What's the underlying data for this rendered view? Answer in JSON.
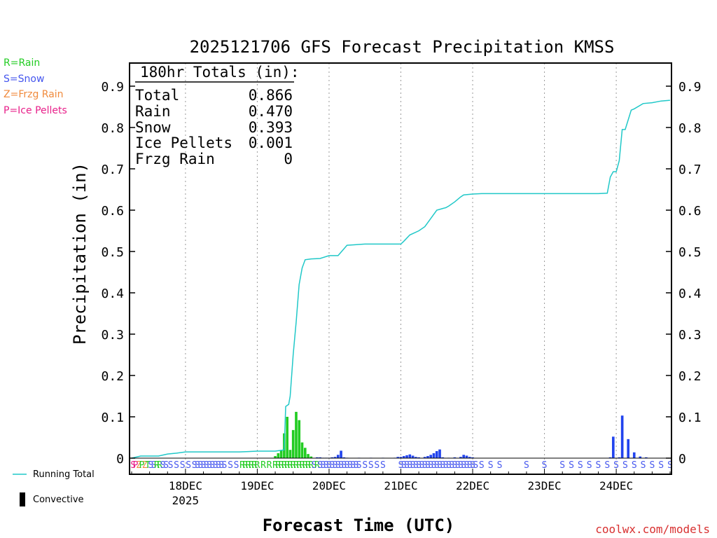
{
  "chart_data": {
    "type": "bar",
    "title": "2025121706 GFS Forecast Precipitation KMSS",
    "xlabel": "Forecast Time (UTC)",
    "ylabel": "Precipitation (in)",
    "ylim": [
      0,
      0.95
    ],
    "xlim_hours": [
      0,
      180
    ],
    "y_ticks": [
      0,
      0.1,
      0.2,
      0.3,
      0.4,
      0.5,
      0.6,
      0.7,
      0.8,
      0.9
    ],
    "y_tick_labels": [
      "0",
      "0.1",
      "0.2",
      "0.3",
      "0.4",
      "0.5",
      "0.6",
      "0.7",
      "0.8",
      "0.9"
    ],
    "x_day_ticks": [
      {
        "hour": 18,
        "label": "18DEC",
        "sublabel": "2025"
      },
      {
        "hour": 42,
        "label": "19DEC",
        "sublabel": ""
      },
      {
        "hour": 66,
        "label": "20DEC",
        "sublabel": ""
      },
      {
        "hour": 90,
        "label": "21DEC",
        "sublabel": ""
      },
      {
        "hour": 114,
        "label": "22DEC",
        "sublabel": ""
      },
      {
        "hour": 138,
        "label": "23DEC",
        "sublabel": ""
      },
      {
        "hour": 162,
        "label": "24DEC",
        "sublabel": ""
      }
    ],
    "precip_type_legend": [
      {
        "label": "R=Rain",
        "color": "#22cc22"
      },
      {
        "label": "S=Snow",
        "color": "#4455ee"
      },
      {
        "label": "Z=Frzg Rain",
        "color": "#f08a3c"
      },
      {
        "label": "P=Ice Pellets",
        "color": "#e8208a"
      }
    ],
    "totals_box": {
      "header": "180hr Totals (in):",
      "rows": [
        {
          "label": "Total",
          "value": "0.866"
        },
        {
          "label": "Rain",
          "value": "0.470"
        },
        {
          "label": "Snow",
          "value": "0.393"
        },
        {
          "label": "Ice Pellets",
          "value": "0.001"
        },
        {
          "label": "Frzg Rain",
          "value": "0"
        }
      ]
    },
    "series_line": {
      "name": "Running Total",
      "color": "#20c8c8",
      "hours": [
        0,
        3,
        9,
        12,
        15,
        18,
        24,
        30,
        36,
        39,
        42,
        48,
        51,
        51.5,
        52.5,
        53,
        54,
        55,
        56,
        57,
        58,
        60,
        63,
        66,
        67,
        69,
        72,
        78,
        84,
        90,
        91,
        93,
        96,
        98,
        99,
        102,
        104,
        105,
        106,
        108,
        110,
        111,
        114,
        117,
        120,
        126,
        132,
        138,
        144,
        150,
        156,
        159,
        160,
        161,
        162,
        163,
        164,
        165,
        167,
        168,
        171,
        174,
        177,
        180
      ],
      "values": [
        0,
        0.005,
        0.005,
        0.01,
        0.012,
        0.015,
        0.015,
        0.015,
        0.015,
        0.016,
        0.017,
        0.017,
        0.02,
        0.125,
        0.13,
        0.15,
        0.25,
        0.33,
        0.42,
        0.46,
        0.48,
        0.482,
        0.483,
        0.49,
        0.49,
        0.49,
        0.515,
        0.518,
        0.518,
        0.518,
        0.525,
        0.54,
        0.55,
        0.56,
        0.57,
        0.6,
        0.604,
        0.606,
        0.61,
        0.62,
        0.632,
        0.637,
        0.639,
        0.64,
        0.64,
        0.64,
        0.64,
        0.64,
        0.64,
        0.64,
        0.64,
        0.641,
        0.68,
        0.693,
        0.693,
        0.72,
        0.795,
        0.795,
        0.842,
        0.845,
        0.858,
        0.86,
        0.864,
        0.866
      ]
    },
    "series_bars": [
      {
        "type": "rain",
        "hours": [
          48,
          49,
          50,
          51,
          52
        ],
        "values": [
          0.005,
          0.012,
          0.018,
          0.06,
          0.1
        ]
      },
      {
        "type": "rain",
        "hours": [
          53,
          54,
          55,
          56,
          57,
          58
        ],
        "values": [
          0.02,
          0.068,
          0.112,
          0.092,
          0.038,
          0.025
        ]
      },
      {
        "type": "rain",
        "hours": [
          59,
          60
        ],
        "values": [
          0.01,
          0.004
        ]
      },
      {
        "type": "snow",
        "hours": [
          62,
          63,
          64,
          65,
          66,
          67,
          68,
          69,
          70
        ],
        "values": [
          0.002,
          0.002,
          0.001,
          0.001,
          0.001,
          0.002,
          0.003,
          0.008,
          0.018
        ]
      },
      {
        "type": "snow",
        "hours": [
          71,
          72,
          76,
          80,
          84,
          88,
          89
        ],
        "values": [
          0.002,
          0.001,
          0.001,
          0.001,
          0.001,
          0.001,
          0.003
        ]
      },
      {
        "type": "snow",
        "hours": [
          90,
          91,
          92,
          93,
          94,
          95,
          96
        ],
        "values": [
          0.003,
          0.005,
          0.007,
          0.009,
          0.006,
          0.003,
          0.002
        ]
      },
      {
        "type": "snow",
        "hours": [
          98,
          99,
          100,
          101,
          102,
          103
        ],
        "values": [
          0.003,
          0.005,
          0.008,
          0.012,
          0.017,
          0.021
        ]
      },
      {
        "type": "snow",
        "hours": [
          104,
          106,
          108,
          110,
          111,
          112,
          113,
          114
        ],
        "values": [
          0.002,
          0.001,
          0.002,
          0.003,
          0.008,
          0.006,
          0.003,
          0.002
        ]
      },
      {
        "type": "snow",
        "hours": [
          160,
          161,
          163,
          164,
          166,
          168,
          170,
          172
        ],
        "values": [
          0.002,
          0.052,
          0.002,
          0.103,
          0.046,
          0.014,
          0.004,
          0.002
        ]
      }
    ],
    "type_letters": [
      {
        "hour": 0.5,
        "letter": "S",
        "color": "#e8208a"
      },
      {
        "hour": 1.3,
        "letter": "P",
        "color": "#e8208a"
      },
      {
        "hour": 2.4,
        "letter": "Z",
        "color": "#f08a3c"
      },
      {
        "hour": 3.4,
        "letter": "P",
        "color": "#22cc22"
      },
      {
        "hour": 4.4,
        "letter": "Z",
        "color": "#f08a3c"
      },
      {
        "hour": 5.4,
        "letter": "T",
        "color": "#22cc22"
      },
      {
        "hour": 6.4,
        "letter": "S",
        "color": "#4455ee"
      },
      {
        "hour": 7.4,
        "letter": "S",
        "color": "#4455ee"
      },
      {
        "hour": 8.4,
        "letter": "R",
        "color": "#22cc22"
      },
      {
        "hour": 9.4,
        "letter": "R",
        "color": "#22cc22"
      },
      {
        "hour": 10.4,
        "letter": "S",
        "color": "#4455ee"
      },
      {
        "hour": 11.5,
        "letter": "S",
        "color": "#4455ee"
      },
      {
        "hour": 13,
        "letter": "S",
        "color": "#4455ee"
      },
      {
        "hour": 15,
        "letter": "S",
        "color": "#4455ee"
      },
      {
        "hour": 17,
        "letter": "S",
        "color": "#4455ee"
      },
      {
        "hour": 19,
        "letter": "S",
        "color": "#4455ee"
      },
      {
        "hour": 21,
        "letter": "S",
        "color": "#4455ee"
      },
      {
        "hour": 22,
        "letter": "S",
        "color": "#4455ee"
      },
      {
        "hour": 23,
        "letter": "S",
        "color": "#4455ee"
      },
      {
        "hour": 24,
        "letter": "S",
        "color": "#4455ee"
      },
      {
        "hour": 25,
        "letter": "S",
        "color": "#4455ee"
      },
      {
        "hour": 26,
        "letter": "S",
        "color": "#4455ee"
      },
      {
        "hour": 27,
        "letter": "S",
        "color": "#4455ee"
      },
      {
        "hour": 28,
        "letter": "S",
        "color": "#4455ee"
      },
      {
        "hour": 29,
        "letter": "S",
        "color": "#4455ee"
      },
      {
        "hour": 30,
        "letter": "S",
        "color": "#4455ee"
      },
      {
        "hour": 31,
        "letter": "S",
        "color": "#4455ee"
      },
      {
        "hour": 33,
        "letter": "S",
        "color": "#4455ee"
      },
      {
        "hour": 35,
        "letter": "S",
        "color": "#4455ee"
      },
      {
        "hour": 37,
        "letter": "R",
        "color": "#22cc22"
      },
      {
        "hour": 38,
        "letter": "R",
        "color": "#22cc22"
      },
      {
        "hour": 39,
        "letter": "R",
        "color": "#22cc22"
      },
      {
        "hour": 40,
        "letter": "R",
        "color": "#22cc22"
      },
      {
        "hour": 41,
        "letter": "R",
        "color": "#22cc22"
      },
      {
        "hour": 42,
        "letter": "R",
        "color": "#22cc22"
      },
      {
        "hour": 44,
        "letter": "R",
        "color": "#22cc22"
      },
      {
        "hour": 46,
        "letter": "R",
        "color": "#22cc22"
      },
      {
        "hour": 48,
        "letter": "R",
        "color": "#22cc22"
      },
      {
        "hour": 49,
        "letter": "R",
        "color": "#22cc22"
      },
      {
        "hour": 50,
        "letter": "R",
        "color": "#22cc22"
      },
      {
        "hour": 51,
        "letter": "R",
        "color": "#22cc22"
      },
      {
        "hour": 52,
        "letter": "R",
        "color": "#22cc22"
      },
      {
        "hour": 53,
        "letter": "R",
        "color": "#22cc22"
      },
      {
        "hour": 54,
        "letter": "R",
        "color": "#22cc22"
      },
      {
        "hour": 55,
        "letter": "R",
        "color": "#22cc22"
      },
      {
        "hour": 56,
        "letter": "R",
        "color": "#22cc22"
      },
      {
        "hour": 57,
        "letter": "R",
        "color": "#22cc22"
      },
      {
        "hour": 58,
        "letter": "R",
        "color": "#22cc22"
      },
      {
        "hour": 59,
        "letter": "R",
        "color": "#22cc22"
      },
      {
        "hour": 60,
        "letter": "R",
        "color": "#22cc22"
      },
      {
        "hour": 61,
        "letter": "S",
        "color": "#4455ee"
      },
      {
        "hour": 62,
        "letter": "R",
        "color": "#22cc22"
      },
      {
        "hour": 63,
        "letter": "S",
        "color": "#4455ee"
      },
      {
        "hour": 64,
        "letter": "S",
        "color": "#4455ee"
      },
      {
        "hour": 65,
        "letter": "S",
        "color": "#4455ee"
      },
      {
        "hour": 66,
        "letter": "S",
        "color": "#4455ee"
      },
      {
        "hour": 67,
        "letter": "S",
        "color": "#4455ee"
      },
      {
        "hour": 68,
        "letter": "S",
        "color": "#4455ee"
      },
      {
        "hour": 69,
        "letter": "S",
        "color": "#4455ee"
      },
      {
        "hour": 70,
        "letter": "S",
        "color": "#4455ee"
      },
      {
        "hour": 71,
        "letter": "S",
        "color": "#4455ee"
      },
      {
        "hour": 72,
        "letter": "S",
        "color": "#4455ee"
      },
      {
        "hour": 73,
        "letter": "S",
        "color": "#4455ee"
      },
      {
        "hour": 74,
        "letter": "S",
        "color": "#4455ee"
      },
      {
        "hour": 75,
        "letter": "S",
        "color": "#4455ee"
      },
      {
        "hour": 76,
        "letter": "S",
        "color": "#4455ee"
      },
      {
        "hour": 78,
        "letter": "S",
        "color": "#4455ee"
      },
      {
        "hour": 80,
        "letter": "S",
        "color": "#4455ee"
      },
      {
        "hour": 82,
        "letter": "S",
        "color": "#4455ee"
      },
      {
        "hour": 84,
        "letter": "S",
        "color": "#4455ee"
      },
      {
        "hour": 90,
        "letter": "S",
        "color": "#4455ee"
      },
      {
        "hour": 91,
        "letter": "S",
        "color": "#4455ee"
      },
      {
        "hour": 92,
        "letter": "S",
        "color": "#4455ee"
      },
      {
        "hour": 93,
        "letter": "S",
        "color": "#4455ee"
      },
      {
        "hour": 94,
        "letter": "S",
        "color": "#4455ee"
      },
      {
        "hour": 95,
        "letter": "S",
        "color": "#4455ee"
      },
      {
        "hour": 96,
        "letter": "S",
        "color": "#4455ee"
      },
      {
        "hour": 97,
        "letter": "S",
        "color": "#4455ee"
      },
      {
        "hour": 98,
        "letter": "S",
        "color": "#4455ee"
      },
      {
        "hour": 99,
        "letter": "S",
        "color": "#4455ee"
      },
      {
        "hour": 100,
        "letter": "S",
        "color": "#4455ee"
      },
      {
        "hour": 101,
        "letter": "S",
        "color": "#4455ee"
      },
      {
        "hour": 102,
        "letter": "S",
        "color": "#4455ee"
      },
      {
        "hour": 103,
        "letter": "S",
        "color": "#4455ee"
      },
      {
        "hour": 104,
        "letter": "S",
        "color": "#4455ee"
      },
      {
        "hour": 105,
        "letter": "S",
        "color": "#4455ee"
      },
      {
        "hour": 106,
        "letter": "S",
        "color": "#4455ee"
      },
      {
        "hour": 107,
        "letter": "S",
        "color": "#4455ee"
      },
      {
        "hour": 108,
        "letter": "S",
        "color": "#4455ee"
      },
      {
        "hour": 109,
        "letter": "S",
        "color": "#4455ee"
      },
      {
        "hour": 110,
        "letter": "S",
        "color": "#4455ee"
      },
      {
        "hour": 111,
        "letter": "S",
        "color": "#4455ee"
      },
      {
        "hour": 112,
        "letter": "S",
        "color": "#4455ee"
      },
      {
        "hour": 113,
        "letter": "S",
        "color": "#4455ee"
      },
      {
        "hour": 114,
        "letter": "S",
        "color": "#4455ee"
      },
      {
        "hour": 115,
        "letter": "S",
        "color": "#4455ee"
      },
      {
        "hour": 117,
        "letter": "S",
        "color": "#4455ee"
      },
      {
        "hour": 120,
        "letter": "S",
        "color": "#4455ee"
      },
      {
        "hour": 123,
        "letter": "S",
        "color": "#4455ee"
      },
      {
        "hour": 132,
        "letter": "S",
        "color": "#4455ee"
      },
      {
        "hour": 138,
        "letter": "S",
        "color": "#4455ee"
      },
      {
        "hour": 144,
        "letter": "S",
        "color": "#4455ee"
      },
      {
        "hour": 147,
        "letter": "S",
        "color": "#4455ee"
      },
      {
        "hour": 150,
        "letter": "S",
        "color": "#4455ee"
      },
      {
        "hour": 153,
        "letter": "S",
        "color": "#4455ee"
      },
      {
        "hour": 156,
        "letter": "S",
        "color": "#4455ee"
      },
      {
        "hour": 159,
        "letter": "S",
        "color": "#4455ee"
      },
      {
        "hour": 162,
        "letter": "S",
        "color": "#4455ee"
      },
      {
        "hour": 165,
        "letter": "S",
        "color": "#4455ee"
      },
      {
        "hour": 168,
        "letter": "S",
        "color": "#4455ee"
      },
      {
        "hour": 171,
        "letter": "S",
        "color": "#4455ee"
      },
      {
        "hour": 174,
        "letter": "S",
        "color": "#4455ee"
      },
      {
        "hour": 177,
        "letter": "S",
        "color": "#4455ee"
      },
      {
        "hour": 180,
        "letter": "S",
        "color": "#4455ee"
      }
    ],
    "bottom_legend": [
      {
        "label": "Running Total",
        "kind": "line",
        "color": "#20c8c8"
      },
      {
        "label": "Convective",
        "kind": "bar",
        "color": "#000000"
      }
    ],
    "credit": "coolwx.com/models",
    "colors": {
      "rain": "#22cc22",
      "snow": "#2244ee",
      "line": "#20c8c8",
      "credit": "#d83030"
    }
  }
}
